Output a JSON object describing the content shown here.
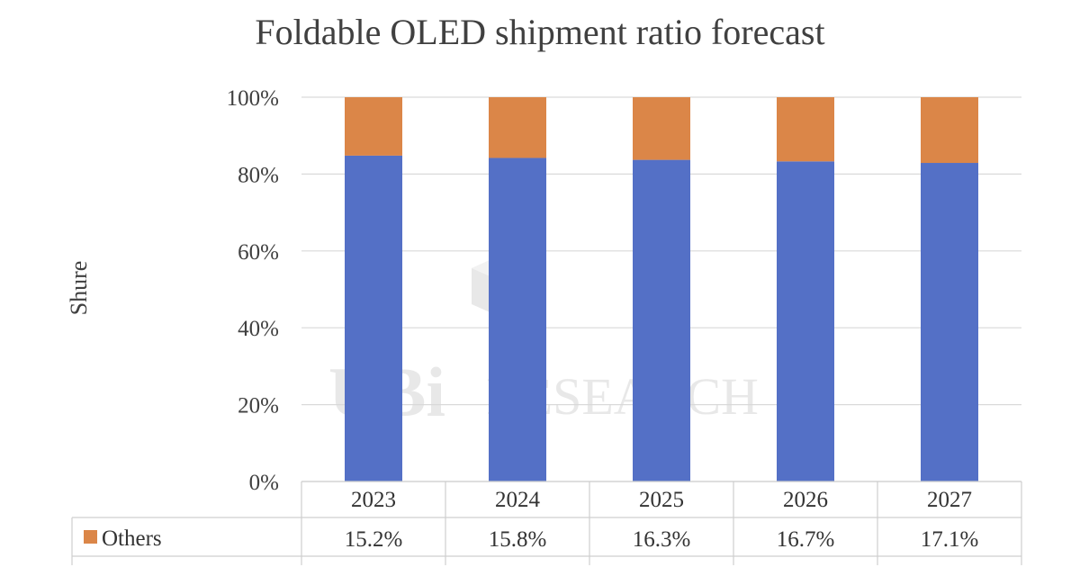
{
  "chart_data": {
    "type": "bar",
    "stacked": true,
    "title": "Foldable OLED shipment ratio forecast",
    "xlabel": "",
    "ylabel": "Shure",
    "categories": [
      "2023",
      "2024",
      "2025",
      "2026",
      "2027"
    ],
    "series": [
      {
        "values": [
          84.8,
          84.2,
          83.7,
          83.3,
          82.9
        ],
        "color": "#5470c6"
      },
      {
        "name": "Others",
        "values": [
          15.2,
          15.8,
          16.3,
          16.7,
          17.1
        ],
        "color": "#db8648"
      }
    ],
    "ylim": [
      0,
      100
    ],
    "yticks": [
      0,
      20,
      40,
      60,
      80,
      100
    ],
    "ytick_labels": [
      "0%",
      "20%",
      "40%",
      "60%",
      "80%",
      "100%"
    ],
    "grid": true,
    "data_table": {
      "rows": [
        {
          "label": "Others",
          "values": [
            "15.2%",
            "15.8%",
            "16.3%",
            "16.7%",
            "17.1%"
          ]
        }
      ]
    },
    "watermark": "UBI RESEARCH"
  }
}
